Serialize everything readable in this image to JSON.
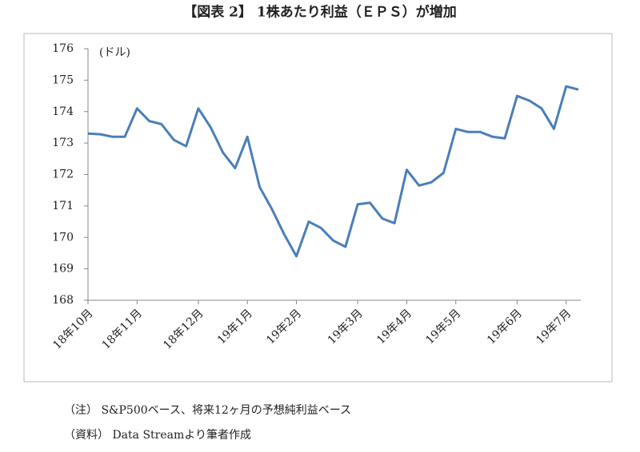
{
  "chart_data": {
    "type": "line",
    "title": "【図表 2】 1株あたり利益（ＥＰＳ）が増加",
    "unit_label": "(ドル)",
    "categories": [
      "18年10月",
      null,
      null,
      null,
      "18年11月",
      null,
      null,
      null,
      null,
      "18年12月",
      null,
      null,
      null,
      "19年1月",
      null,
      null,
      null,
      "19年2月",
      null,
      null,
      null,
      null,
      "19年3月",
      null,
      null,
      null,
      "19年4月",
      null,
      null,
      null,
      "19年5月",
      null,
      null,
      null,
      null,
      "19年6月",
      null,
      null,
      null,
      "19年7月",
      null
    ],
    "values": [
      173.3,
      173.28,
      173.2,
      173.2,
      174.1,
      173.7,
      173.6,
      173.1,
      172.9,
      174.1,
      173.5,
      172.7,
      172.2,
      173.2,
      171.6,
      170.9,
      170.1,
      169.4,
      170.5,
      170.3,
      169.9,
      169.7,
      171.05,
      171.1,
      170.6,
      170.45,
      172.15,
      171.65,
      171.75,
      172.05,
      173.45,
      173.35,
      173.35,
      173.2,
      173.15,
      174.5,
      174.35,
      174.1,
      173.45,
      174.8,
      174.7
    ],
    "color": "#4a7ebb",
    "ylim": [
      168,
      176
    ],
    "yticks": [
      168,
      169,
      170,
      171,
      172,
      173,
      174,
      175,
      176
    ],
    "grid": false
  },
  "notes": [
    "（注） S&P500ベース、将来12ヶ月の予想純利益ベース",
    "（資料） Data Streamより筆者作成"
  ]
}
